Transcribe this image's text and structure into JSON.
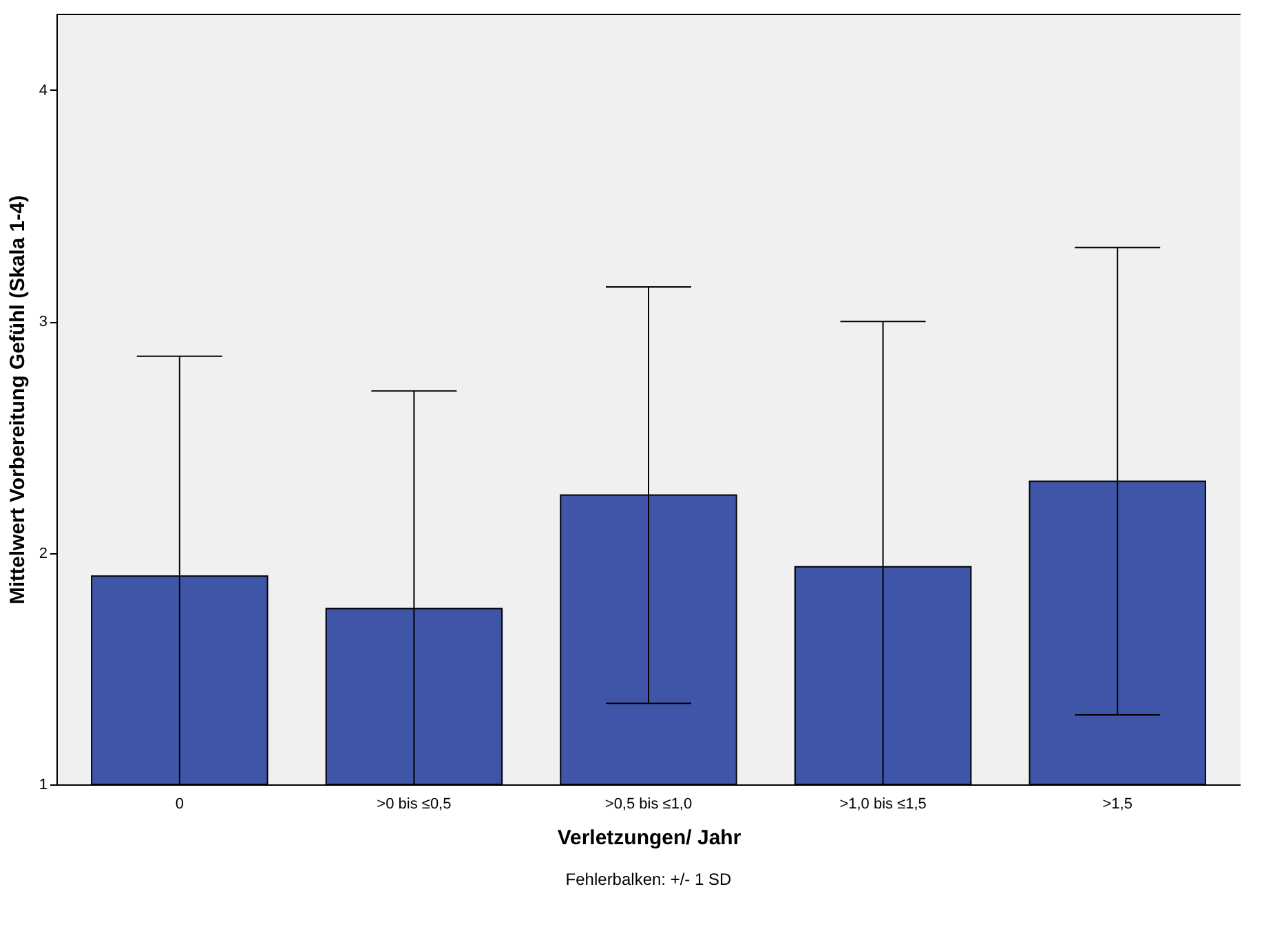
{
  "chart_data": {
    "type": "bar",
    "xlabel": "Verletzungen/ Jahr",
    "ylabel": "Mittelwert Vorbereitung Gefühl (Skala 1-4)",
    "categories": [
      "0",
      ">0 bis ≤0,5",
      ">0,5 bis ≤1,0",
      ">1,0 bis ≤1,5",
      ">1,5"
    ],
    "values": [
      1.9,
      1.76,
      2.25,
      1.94,
      2.31
    ],
    "errors": [
      [
        1,
        2.85
      ],
      [
        1,
        2.7
      ],
      0.9,
      [
        1,
        3.0
      ],
      1.01
    ],
    "color": "#3f56a8",
    "ylim": [
      1,
      4.33
    ],
    "yticks": [
      1,
      2,
      3,
      4
    ],
    "grid": false,
    "annotations": [
      "Fehlerbalken: +/- 1 SD"
    ]
  }
}
